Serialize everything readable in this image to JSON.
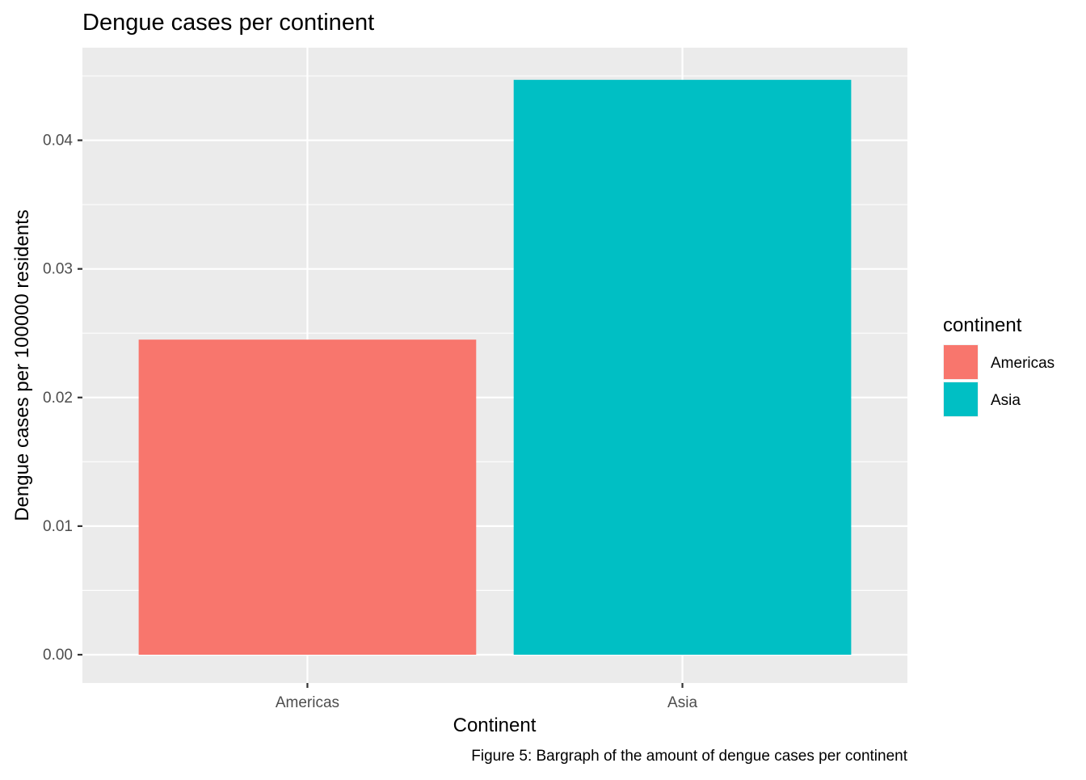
{
  "chart_data": {
    "type": "bar",
    "title": "Dengue cases per continent",
    "xlabel": "Continent",
    "ylabel": "Dengue cases per 100000 residents",
    "caption": "Figure 5: Bargraph of the amount of dengue cases per continent",
    "categories": [
      "Americas",
      "Asia"
    ],
    "values": [
      0.0245,
      0.0447
    ],
    "colors": [
      "#F8766D",
      "#00BFC4"
    ],
    "ylim": [
      -0.0022,
      0.0472
    ],
    "yticks": [
      0.0,
      0.01,
      0.02,
      0.03,
      0.04
    ],
    "ytick_labels": [
      "0.00",
      "0.01",
      "0.02",
      "0.03",
      "0.04"
    ],
    "grid": true,
    "legend": {
      "title": "continent",
      "entries": [
        "Americas",
        "Asia"
      ],
      "placement": "right"
    }
  }
}
